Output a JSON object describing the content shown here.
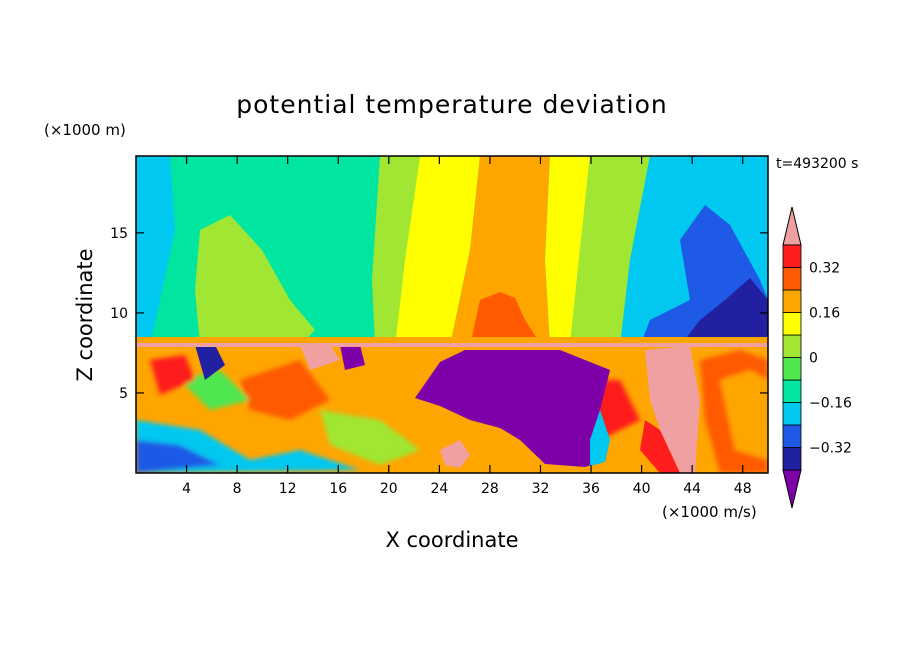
{
  "chart_data": {
    "type": "heatmap",
    "title": "potential temperature deviation",
    "xlabel": "X coordinate",
    "ylabel": "Z coordinate",
    "x_unit": "(×1000 m/s)",
    "y_unit": "(×1000 m)",
    "time_label": "t=493200 s",
    "xlim": [
      0,
      50
    ],
    "ylim": [
      0,
      19.8
    ],
    "x_ticks": [
      4,
      8,
      12,
      16,
      20,
      24,
      28,
      32,
      36,
      40,
      44,
      48
    ],
    "y_ticks": [
      5,
      10,
      15
    ],
    "colorbar": {
      "levels": [
        -0.4,
        -0.32,
        -0.24,
        -0.16,
        -0.08,
        0,
        0.08,
        0.16,
        0.24,
        0.32,
        0.4
      ],
      "labeled": [
        -0.32,
        -0.16,
        0,
        0.16,
        0.32
      ],
      "colors": [
        "#7d00a8",
        "#2020a0",
        "#1e5ae6",
        "#00c8f0",
        "#00e6a0",
        "#50e650",
        "#a0e632",
        "#ffff00",
        "#ffa500",
        "#ff5a00",
        "#ff1e1e",
        "#f0a0a0"
      ]
    }
  }
}
